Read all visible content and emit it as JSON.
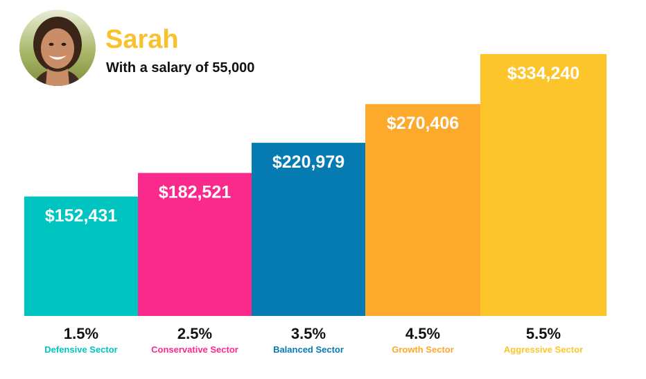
{
  "person": {
    "name": "Sarah",
    "subtitle": "With a salary of 55,000"
  },
  "colors": {
    "name": "#f9c12c",
    "text": "#111111"
  },
  "chart_data": {
    "type": "bar",
    "categories": [
      "1.5%",
      "2.5%",
      "3.5%",
      "4.5%",
      "5.5%"
    ],
    "sectors": [
      "Defensive Sector",
      "Conservative Sector",
      "Balanced Sector",
      "Growth Sector",
      "Aggressive Sector"
    ],
    "values": [
      152431,
      182521,
      220979,
      270406,
      334240
    ],
    "value_labels": [
      "$152,431",
      "$182,521",
      "$220,979",
      "$270,406",
      "$334,240"
    ],
    "colors": [
      "#00c4c0",
      "#f92a8b",
      "#067bb1",
      "#fca92c",
      "#fdc52c"
    ],
    "label_colors": [
      "#00c4c0",
      "#f92a8b",
      "#067bb1",
      "#fca92c",
      "#fdc52c"
    ],
    "title": "",
    "xlabel": "",
    "ylabel": "",
    "ylim": [
      0,
      334240
    ],
    "grid": false,
    "legend": "none"
  }
}
